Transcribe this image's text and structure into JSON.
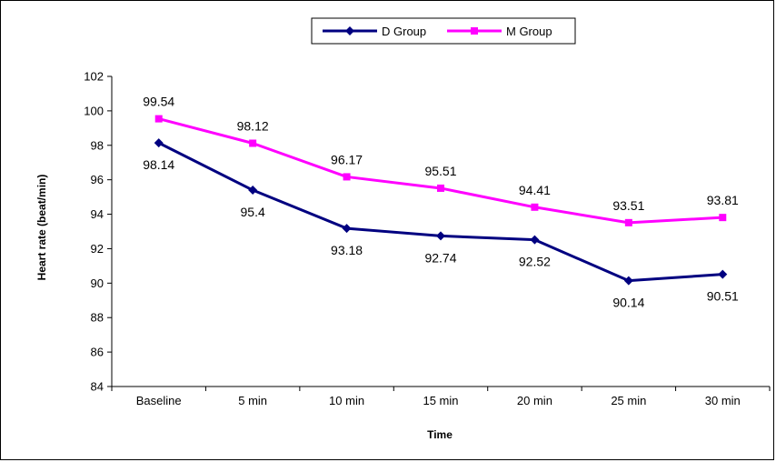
{
  "chart_data": {
    "type": "line",
    "categories": [
      "Baseline",
      "5 min",
      "10 min",
      "15 min",
      "20 min",
      "25 min",
      "30 min"
    ],
    "series": [
      {
        "name": "D Group",
        "color": "#000080",
        "marker": "diamond",
        "values": [
          98.14,
          95.4,
          93.18,
          92.74,
          92.52,
          90.14,
          90.51
        ]
      },
      {
        "name": "M Group",
        "color": "#FF00FF",
        "marker": "square",
        "values": [
          99.54,
          98.12,
          96.17,
          95.51,
          94.41,
          93.51,
          93.81
        ]
      }
    ],
    "xlabel": "Time",
    "ylabel": "Heart rate (beat/min)",
    "ylim": [
      84,
      102
    ],
    "yticks": [
      84,
      86,
      88,
      90,
      92,
      94,
      96,
      98,
      100,
      102
    ],
    "grid": false,
    "legend": "top-center"
  }
}
